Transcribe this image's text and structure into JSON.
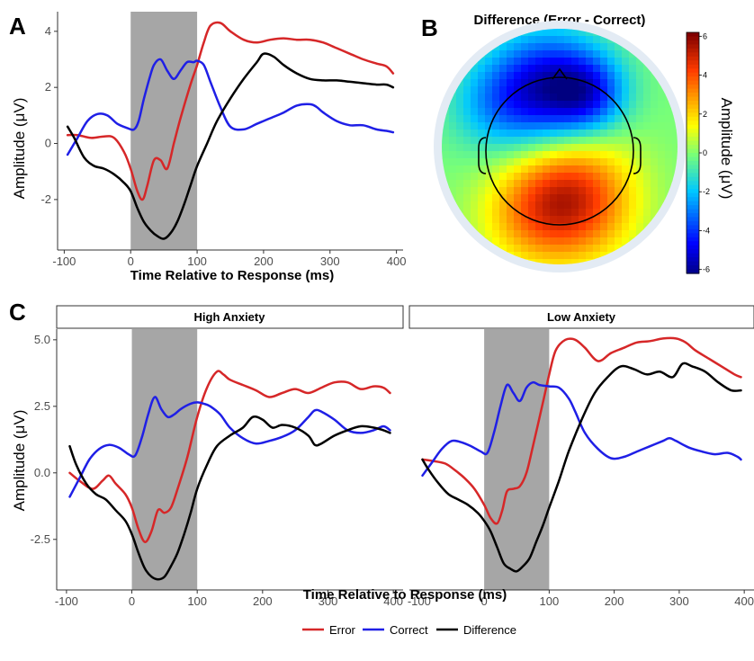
{
  "colors": {
    "error": "#d62728",
    "correct": "#1f1fe6",
    "difference": "#000000",
    "shade": "#a6a6a6"
  },
  "legend": [
    "Error",
    "Correct",
    "Difference"
  ],
  "panel_labels": {
    "a": "A",
    "b": "B",
    "c": "C"
  },
  "chart_data": [
    {
      "type": "line",
      "panel": "A",
      "xlabel": "Time Relative to Response (ms)",
      "ylabel": "Amplitude (μV)",
      "xlim": [
        -110,
        410
      ],
      "ylim": [
        -3.8,
        4.7
      ],
      "xticks": [
        -100,
        0,
        100,
        200,
        300,
        400
      ],
      "yticks": [
        -2,
        0,
        2,
        4
      ],
      "shaded_window_ms": [
        0,
        100
      ],
      "series": [
        {
          "name": "Error",
          "x": [
            -95,
            -80,
            -60,
            -40,
            -25,
            -10,
            0,
            10,
            18,
            25,
            35,
            45,
            55,
            65,
            75,
            90,
            100,
            110,
            120,
            135,
            150,
            170,
            190,
            210,
            230,
            250,
            270,
            290,
            310,
            330,
            350,
            370,
            385,
            395
          ],
          "y": [
            0.3,
            0.3,
            0.2,
            0.25,
            0.2,
            -0.3,
            -0.9,
            -1.7,
            -2.0,
            -1.5,
            -0.6,
            -0.6,
            -0.9,
            0.0,
            0.9,
            2.1,
            2.8,
            3.6,
            4.2,
            4.3,
            4.0,
            3.7,
            3.6,
            3.7,
            3.75,
            3.7,
            3.7,
            3.6,
            3.4,
            3.2,
            3.0,
            2.85,
            2.75,
            2.5
          ]
        },
        {
          "name": "Correct",
          "x": [
            -95,
            -80,
            -65,
            -50,
            -35,
            -20,
            -5,
            5,
            12,
            20,
            28,
            35,
            45,
            55,
            65,
            75,
            85,
            95,
            100,
            110,
            120,
            135,
            150,
            170,
            190,
            210,
            230,
            250,
            270,
            280,
            290,
            310,
            330,
            350,
            370,
            385,
            395
          ],
          "y": [
            -0.4,
            0.2,
            0.8,
            1.05,
            1.0,
            0.7,
            0.55,
            0.5,
            0.8,
            1.6,
            2.3,
            2.8,
            3.0,
            2.6,
            2.3,
            2.6,
            2.9,
            2.9,
            2.95,
            2.8,
            2.2,
            1.3,
            0.6,
            0.5,
            0.7,
            0.9,
            1.1,
            1.35,
            1.4,
            1.3,
            1.1,
            0.8,
            0.65,
            0.65,
            0.5,
            0.45,
            0.4
          ]
        },
        {
          "name": "Difference",
          "x": [
            -95,
            -85,
            -70,
            -55,
            -40,
            -25,
            -10,
            0,
            10,
            20,
            30,
            40,
            50,
            60,
            70,
            80,
            90,
            100,
            115,
            130,
            150,
            170,
            190,
            200,
            215,
            230,
            250,
            270,
            290,
            310,
            330,
            350,
            370,
            385,
            395
          ],
          "y": [
            0.6,
            0.2,
            -0.5,
            -0.8,
            -0.9,
            -1.1,
            -1.4,
            -1.7,
            -2.3,
            -2.8,
            -3.1,
            -3.3,
            -3.4,
            -3.2,
            -2.8,
            -2.2,
            -1.5,
            -0.8,
            0.0,
            0.8,
            1.6,
            2.3,
            2.9,
            3.2,
            3.1,
            2.8,
            2.5,
            2.3,
            2.25,
            2.25,
            2.2,
            2.15,
            2.1,
            2.1,
            2.0
          ]
        }
      ]
    },
    {
      "type": "heatmap",
      "panel": "B",
      "title": "Difference (Error - Correct)",
      "colorbar_label": "Amplitude (μV)",
      "colorbar_range": [
        -6.2,
        6.2
      ],
      "colorbar_ticks": [
        -6,
        -4,
        -2,
        0,
        2,
        4,
        6
      ],
      "blobs": [
        {
          "cx": -0.1,
          "cy": -0.5,
          "value": -5.0,
          "spread": 0.33
        },
        {
          "cx": 0.25,
          "cy": -0.45,
          "value": -3.0,
          "spread": 0.22
        },
        {
          "cx": -0.55,
          "cy": -0.35,
          "value": -1.8,
          "spread": 0.28
        },
        {
          "cx": 0.1,
          "cy": 0.45,
          "value": 5.0,
          "spread": 0.36
        },
        {
          "cx": -0.3,
          "cy": 0.6,
          "value": 1.5,
          "spread": 0.3
        }
      ]
    },
    {
      "type": "line",
      "panel": "C",
      "facets": [
        "High Anxiety",
        "Low Anxiety"
      ],
      "xlabel": "Time Relative to Response (ms)",
      "ylabel": "Amplitude (μV)",
      "xlim": [
        -115,
        415
      ],
      "ylim": [
        -4.4,
        5.4
      ],
      "xticks": [
        -100,
        0,
        100,
        200,
        300,
        400
      ],
      "yticks": [
        -2.5,
        0.0,
        2.5,
        5.0
      ],
      "ytick_labels": [
        "-2.5",
        "0.0",
        "2.5",
        "5.0"
      ],
      "shaded_window_ms": [
        0,
        100
      ],
      "panels": [
        {
          "facet": "High Anxiety",
          "series": [
            {
              "name": "Error",
              "x": [
                -95,
                -80,
                -60,
                -45,
                -35,
                -25,
                -10,
                0,
                10,
                20,
                30,
                40,
                50,
                60,
                70,
                85,
                100,
                115,
                130,
                140,
                150,
                170,
                190,
                210,
                230,
                250,
                270,
                290,
                310,
                330,
                350,
                370,
                385,
                395
              ],
              "y": [
                0.0,
                -0.3,
                -0.6,
                -0.3,
                -0.1,
                -0.4,
                -0.8,
                -1.3,
                -2.1,
                -2.6,
                -2.2,
                -1.4,
                -1.5,
                -1.3,
                -0.6,
                0.6,
                2.1,
                3.2,
                3.8,
                3.7,
                3.5,
                3.3,
                3.1,
                2.85,
                3.0,
                3.15,
                3.0,
                3.2,
                3.4,
                3.4,
                3.15,
                3.25,
                3.2,
                3.0
              ]
            },
            {
              "name": "Correct",
              "x": [
                -95,
                -80,
                -65,
                -50,
                -35,
                -20,
                -5,
                5,
                15,
                25,
                35,
                45,
                55,
                65,
                75,
                90,
                100,
                110,
                120,
                135,
                150,
                170,
                190,
                210,
                230,
                250,
                270,
                280,
                290,
                310,
                330,
                350,
                370,
                385,
                395
              ],
              "y": [
                -0.9,
                -0.2,
                0.5,
                0.9,
                1.05,
                0.95,
                0.7,
                0.65,
                1.3,
                2.2,
                2.85,
                2.4,
                2.1,
                2.2,
                2.4,
                2.6,
                2.65,
                2.6,
                2.5,
                2.2,
                1.7,
                1.3,
                1.1,
                1.2,
                1.35,
                1.6,
                2.1,
                2.35,
                2.3,
                2.0,
                1.6,
                1.5,
                1.6,
                1.75,
                1.6
              ]
            },
            {
              "name": "Difference",
              "x": [
                -95,
                -85,
                -70,
                -55,
                -40,
                -25,
                -10,
                0,
                10,
                20,
                30,
                40,
                50,
                60,
                70,
                80,
                90,
                100,
                115,
                130,
                150,
                170,
                185,
                200,
                215,
                230,
                250,
                270,
                280,
                290,
                310,
                330,
                350,
                370,
                385,
                395
              ],
              "y": [
                1.0,
                0.3,
                -0.4,
                -0.8,
                -1.0,
                -1.4,
                -1.8,
                -2.3,
                -3.0,
                -3.6,
                -3.9,
                -4.0,
                -3.9,
                -3.5,
                -3.0,
                -2.3,
                -1.5,
                -0.6,
                0.3,
                1.0,
                1.4,
                1.7,
                2.1,
                2.0,
                1.7,
                1.8,
                1.7,
                1.4,
                1.05,
                1.1,
                1.4,
                1.6,
                1.75,
                1.7,
                1.6,
                1.5
              ]
            }
          ]
        },
        {
          "facet": "Low Anxiety",
          "series": [
            {
              "name": "Error",
              "x": [
                -95,
                -80,
                -60,
                -45,
                -30,
                -15,
                0,
                10,
                20,
                28,
                35,
                45,
                55,
                65,
                75,
                90,
                100,
                110,
                125,
                140,
                155,
                175,
                195,
                215,
                235,
                255,
                275,
                295,
                310,
                325,
                345,
                365,
                385,
                395
              ],
              "y": [
                0.5,
                0.45,
                0.35,
                0.1,
                -0.2,
                -0.6,
                -1.2,
                -1.7,
                -1.9,
                -1.4,
                -0.7,
                -0.6,
                -0.5,
                0.0,
                1.0,
                2.6,
                3.7,
                4.6,
                5.0,
                5.0,
                4.7,
                4.2,
                4.5,
                4.7,
                4.9,
                4.95,
                5.05,
                5.05,
                4.9,
                4.6,
                4.3,
                4.0,
                3.7,
                3.6
              ]
            },
            {
              "name": "Correct",
              "x": [
                -95,
                -80,
                -65,
                -50,
                -35,
                -20,
                -5,
                5,
                15,
                25,
                35,
                45,
                55,
                65,
                75,
                85,
                100,
                115,
                130,
                140,
                155,
                175,
                195,
                215,
                235,
                255,
                275,
                285,
                295,
                315,
                335,
                355,
                375,
                390,
                395
              ],
              "y": [
                -0.1,
                0.4,
                0.9,
                1.2,
                1.15,
                1.0,
                0.8,
                0.75,
                1.5,
                2.5,
                3.3,
                3.0,
                2.7,
                3.2,
                3.4,
                3.3,
                3.25,
                3.2,
                2.8,
                2.3,
                1.5,
                0.9,
                0.55,
                0.6,
                0.8,
                1.0,
                1.2,
                1.3,
                1.2,
                0.95,
                0.8,
                0.7,
                0.75,
                0.6,
                0.5
              ]
            },
            {
              "name": "Difference",
              "x": [
                -95,
                -85,
                -70,
                -55,
                -40,
                -25,
                -10,
                0,
                10,
                20,
                30,
                40,
                50,
                60,
                70,
                80,
                90,
                100,
                115,
                130,
                150,
                170,
                190,
                210,
                230,
                250,
                270,
                290,
                305,
                320,
                340,
                360,
                380,
                395
              ],
              "y": [
                0.5,
                0.1,
                -0.4,
                -0.8,
                -1.0,
                -1.2,
                -1.5,
                -1.8,
                -2.2,
                -2.8,
                -3.4,
                -3.6,
                -3.7,
                -3.5,
                -3.2,
                -2.6,
                -2.0,
                -1.3,
                -0.3,
                0.8,
                2.0,
                3.0,
                3.6,
                4.0,
                3.9,
                3.7,
                3.8,
                3.6,
                4.1,
                4.0,
                3.8,
                3.4,
                3.1,
                3.1
              ]
            }
          ]
        }
      ]
    }
  ]
}
